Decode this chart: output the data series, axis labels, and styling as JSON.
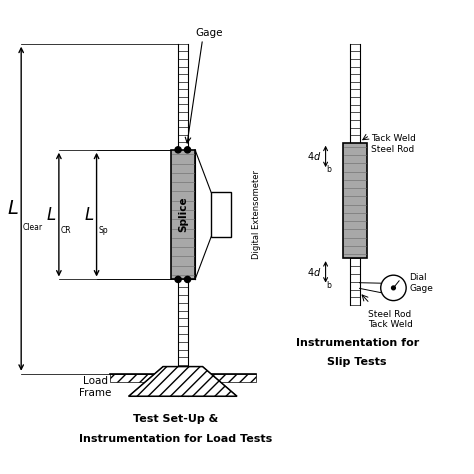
{
  "title_bottom1": "Test Set-Up &",
  "title_bottom2": "Instrumentation for Load Tests",
  "title_right1": "Instrumentation for",
  "title_right2": "Slip Tests",
  "label_gage": "Gage",
  "label_splice": "Splice",
  "label_digital_ext": "Digital Extensometer",
  "label_load_frame": "Load\nFrame",
  "sub_clear": "Clear",
  "sub_cr": "CR",
  "sub_sp": "Sp",
  "sub_b": "b",
  "label_tack_weld_top": "Tack Weld\nSteel Rod",
  "label_dial_gage": "Dial\nGage",
  "label_steel_rod_tack": "Steel Rod\nTack Weld",
  "bg_color": "#ffffff"
}
